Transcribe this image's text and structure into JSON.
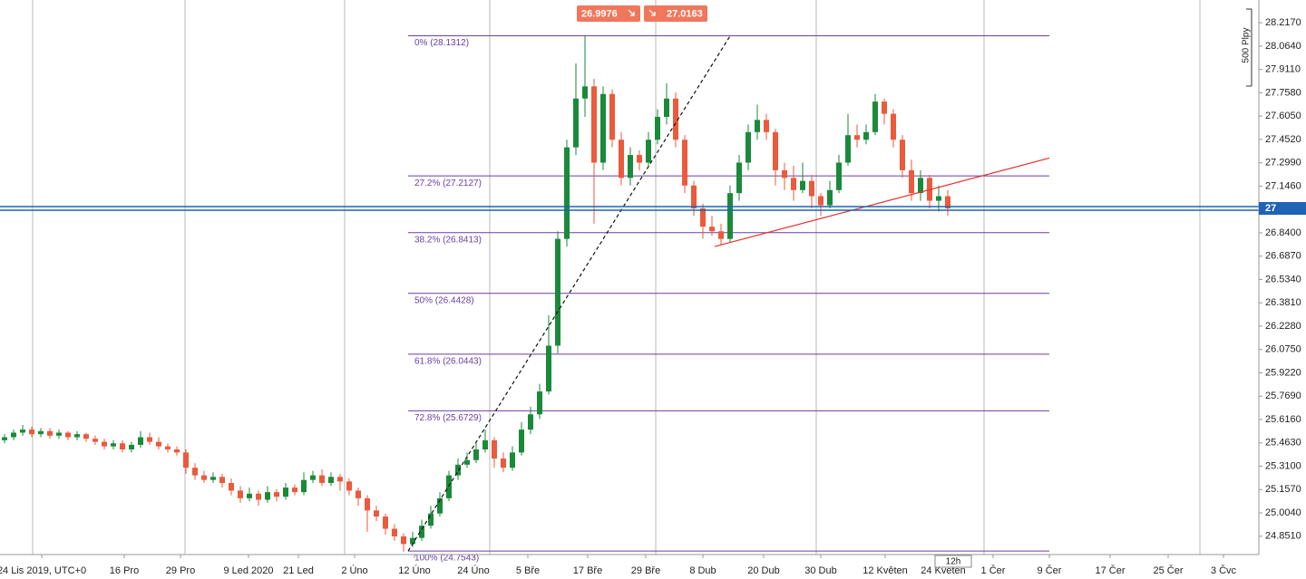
{
  "chart_data": {
    "type": "candlestick",
    "ylim": [
      24.731,
      28.366
    ],
    "yticks": [
      {
        "value": 28.217,
        "label": "28.2170"
      },
      {
        "value": 28.064,
        "label": "28.0640"
      },
      {
        "value": 27.911,
        "label": "27.9110"
      },
      {
        "value": 27.758,
        "label": "27.7580"
      },
      {
        "value": 27.605,
        "label": "27.6050"
      },
      {
        "value": 27.452,
        "label": "27.4520"
      },
      {
        "value": 27.299,
        "label": "27.2990"
      },
      {
        "value": 27.146,
        "label": "27.1460"
      },
      {
        "value": 26.84,
        "label": "26.8400"
      },
      {
        "value": 26.687,
        "label": "26.6870"
      },
      {
        "value": 26.534,
        "label": "26.5340"
      },
      {
        "value": 26.381,
        "label": "26.3810"
      },
      {
        "value": 26.228,
        "label": "26.2280"
      },
      {
        "value": 26.075,
        "label": "26.0750"
      },
      {
        "value": 25.922,
        "label": "25.9220"
      },
      {
        "value": 25.769,
        "label": "25.7690"
      },
      {
        "value": 25.616,
        "label": "25.6160"
      },
      {
        "value": 25.463,
        "label": "25.4630"
      },
      {
        "value": 25.31,
        "label": "25.3100"
      },
      {
        "value": 25.157,
        "label": "25.1570"
      },
      {
        "value": 25.004,
        "label": "25.0040"
      },
      {
        "value": 24.851,
        "label": "24.8510"
      }
    ],
    "xlim": [
      0,
      138.8
    ],
    "xticks": [
      {
        "value": 4.6,
        "label": "24 Lis 2019, UTC+0"
      },
      {
        "value": 13.7,
        "label": "16 Pro"
      },
      {
        "value": 19.9,
        "label": "29 Pro"
      },
      {
        "value": 27.4,
        "label": "9 Led 2020"
      },
      {
        "value": 32.9,
        "label": "21 Led"
      },
      {
        "value": 39.1,
        "label": "2 Úno"
      },
      {
        "value": 45.7,
        "label": "12 Úno"
      },
      {
        "value": 52.2,
        "label": "24 Úno"
      },
      {
        "value": 58.2,
        "label": "5 Bře"
      },
      {
        "value": 64.8,
        "label": "17 Bře"
      },
      {
        "value": 71.2,
        "label": "29 Bře"
      },
      {
        "value": 77.5,
        "label": "8 Dub"
      },
      {
        "value": 84.2,
        "label": "20 Dub"
      },
      {
        "value": 90.5,
        "label": "30 Dub"
      },
      {
        "value": 97.6,
        "label": "12 Květen"
      },
      {
        "value": 104,
        "label": "24 Květen"
      },
      {
        "value": 109.5,
        "label": "1 Čer"
      },
      {
        "value": 115.7,
        "label": "9 Čer"
      },
      {
        "value": 122.4,
        "label": "17 Čer"
      },
      {
        "value": 128.8,
        "label": "25 Čer"
      },
      {
        "value": 134.9,
        "label": "3 Čvc"
      }
    ],
    "xgrid": [
      3.6,
      20.4,
      38.0,
      54.0,
      72.3,
      90.0,
      108.5,
      132.3
    ],
    "series": [
      {
        "up_color": "#1a8a3a",
        "down_color": "#ea5a3c",
        "ohlc": [
          [
            25.48,
            25.52,
            25.46,
            25.5
          ],
          [
            25.5,
            25.55,
            25.48,
            25.53
          ],
          [
            25.53,
            25.58,
            25.51,
            25.55
          ],
          [
            25.55,
            25.57,
            25.5,
            25.52
          ],
          [
            25.52,
            25.56,
            25.5,
            25.54
          ],
          [
            25.54,
            25.56,
            25.49,
            25.51
          ],
          [
            25.51,
            25.55,
            25.49,
            25.53
          ],
          [
            25.53,
            25.54,
            25.48,
            25.5
          ],
          [
            25.5,
            25.54,
            25.48,
            25.52
          ],
          [
            25.52,
            25.53,
            25.47,
            25.49
          ],
          [
            25.49,
            25.51,
            25.45,
            25.47
          ],
          [
            25.47,
            25.49,
            25.42,
            25.44
          ],
          [
            25.44,
            25.48,
            25.42,
            25.46
          ],
          [
            25.46,
            25.48,
            25.4,
            25.42
          ],
          [
            25.42,
            25.47,
            25.4,
            25.45
          ],
          [
            25.45,
            25.54,
            25.43,
            25.5
          ],
          [
            25.5,
            25.53,
            25.45,
            25.47
          ],
          [
            25.47,
            25.5,
            25.42,
            25.44
          ],
          [
            25.44,
            25.46,
            25.4,
            25.42
          ],
          [
            25.42,
            25.44,
            25.38,
            25.4
          ],
          [
            25.4,
            25.42,
            25.26,
            25.3
          ],
          [
            25.3,
            25.33,
            25.22,
            25.25
          ],
          [
            25.25,
            25.28,
            25.2,
            25.22
          ],
          [
            25.22,
            25.27,
            25.2,
            25.24
          ],
          [
            25.24,
            25.26,
            25.17,
            25.2
          ],
          [
            25.2,
            25.23,
            25.12,
            25.15
          ],
          [
            25.15,
            25.18,
            25.07,
            25.1
          ],
          [
            25.1,
            25.17,
            25.08,
            25.13
          ],
          [
            25.13,
            25.15,
            25.05,
            25.09
          ],
          [
            25.09,
            25.18,
            25.07,
            25.14
          ],
          [
            25.14,
            25.16,
            25.08,
            25.11
          ],
          [
            25.11,
            25.2,
            25.09,
            25.17
          ],
          [
            25.17,
            25.19,
            25.12,
            25.14
          ],
          [
            25.14,
            25.27,
            25.12,
            25.22
          ],
          [
            25.22,
            25.28,
            25.2,
            25.25
          ],
          [
            25.25,
            25.29,
            25.18,
            25.2
          ],
          [
            25.2,
            25.27,
            25.18,
            25.24
          ],
          [
            25.24,
            25.26,
            25.15,
            25.21
          ],
          [
            25.21,
            25.23,
            25.12,
            25.15
          ],
          [
            25.15,
            25.17,
            25.05,
            25.1
          ],
          [
            25.1,
            25.12,
            24.88,
            25.02
          ],
          [
            25.02,
            25.05,
            24.95,
            24.98
          ],
          [
            24.98,
            25.0,
            24.86,
            24.9
          ],
          [
            24.9,
            24.93,
            24.82,
            24.85
          ],
          [
            24.85,
            24.87,
            24.75,
            24.8
          ],
          [
            24.8,
            24.88,
            24.78,
            24.84
          ],
          [
            24.84,
            24.96,
            24.82,
            24.92
          ],
          [
            24.92,
            25.05,
            24.9,
            25.0
          ],
          [
            25.0,
            25.14,
            24.98,
            25.1
          ],
          [
            25.1,
            25.28,
            25.08,
            25.25
          ],
          [
            25.25,
            25.36,
            25.22,
            25.32
          ],
          [
            25.32,
            25.4,
            25.3,
            25.35
          ],
          [
            25.35,
            25.46,
            25.33,
            25.42
          ],
          [
            25.42,
            25.55,
            25.4,
            25.48
          ],
          [
            25.48,
            25.5,
            25.3,
            25.36
          ],
          [
            25.36,
            25.4,
            25.27,
            25.3
          ],
          [
            25.3,
            25.44,
            25.28,
            25.4
          ],
          [
            25.4,
            25.6,
            25.38,
            25.55
          ],
          [
            25.55,
            25.7,
            25.52,
            25.65
          ],
          [
            25.65,
            25.85,
            25.62,
            25.8
          ],
          [
            25.8,
            26.3,
            25.78,
            26.1
          ],
          [
            26.1,
            26.85,
            26.05,
            26.8
          ],
          [
            26.8,
            27.45,
            26.75,
            27.4
          ],
          [
            27.4,
            27.95,
            27.35,
            27.72
          ],
          [
            27.72,
            28.13,
            27.6,
            27.8
          ],
          [
            27.8,
            27.85,
            26.9,
            27.3
          ],
          [
            27.3,
            27.8,
            27.25,
            27.75
          ],
          [
            27.75,
            27.78,
            27.4,
            27.45
          ],
          [
            27.45,
            27.5,
            27.15,
            27.2
          ],
          [
            27.2,
            27.4,
            27.15,
            27.35
          ],
          [
            27.35,
            27.38,
            27.25,
            27.3
          ],
          [
            27.3,
            27.5,
            27.27,
            27.45
          ],
          [
            27.45,
            27.65,
            27.42,
            27.6
          ],
          [
            27.6,
            27.82,
            27.55,
            27.72
          ],
          [
            27.72,
            27.76,
            27.4,
            27.45
          ],
          [
            27.45,
            27.48,
            27.1,
            27.15
          ],
          [
            27.15,
            27.18,
            26.95,
            27.0
          ],
          [
            27.0,
            27.03,
            26.8,
            26.88
          ],
          [
            26.88,
            26.95,
            26.82,
            26.85
          ],
          [
            26.85,
            26.9,
            26.76,
            26.8
          ],
          [
            26.8,
            27.15,
            26.78,
            27.1
          ],
          [
            27.1,
            27.35,
            27.05,
            27.3
          ],
          [
            27.3,
            27.55,
            27.25,
            27.5
          ],
          [
            27.5,
            27.68,
            27.45,
            27.58
          ],
          [
            27.58,
            27.62,
            27.45,
            27.5
          ],
          [
            27.5,
            27.52,
            27.15,
            27.25
          ],
          [
            27.25,
            27.3,
            27.12,
            27.2
          ],
          [
            27.2,
            27.28,
            27.05,
            27.12
          ],
          [
            27.12,
            27.3,
            27.1,
            27.18
          ],
          [
            27.18,
            27.22,
            27.0,
            27.08
          ],
          [
            27.08,
            27.1,
            26.95,
            27.02
          ],
          [
            27.02,
            27.18,
            27.0,
            27.12
          ],
          [
            27.12,
            27.35,
            27.1,
            27.3
          ],
          [
            27.3,
            27.62,
            27.28,
            27.48
          ],
          [
            27.48,
            27.55,
            27.4,
            27.45
          ],
          [
            27.45,
            27.55,
            27.42,
            27.5
          ],
          [
            27.5,
            27.75,
            27.48,
            27.7
          ],
          [
            27.7,
            27.72,
            27.55,
            27.62
          ],
          [
            27.62,
            27.65,
            27.4,
            27.45
          ],
          [
            27.45,
            27.48,
            27.2,
            27.25
          ],
          [
            27.25,
            27.32,
            27.05,
            27.1
          ],
          [
            27.1,
            27.25,
            27.05,
            27.2
          ],
          [
            27.2,
            27.22,
            27.0,
            27.05
          ],
          [
            27.05,
            27.15,
            26.98,
            27.08
          ],
          [
            27.08,
            27.12,
            26.95,
            27.0
          ]
        ]
      }
    ],
    "fib": {
      "color": "#6b3fa0",
      "x_range": [
        45,
        115.7
      ],
      "levels": [
        {
          "value": 28.1312,
          "label": "0% (28.1312)"
        },
        {
          "value": 27.2127,
          "label": "27.2% (27.2127)"
        },
        {
          "value": 26.8413,
          "label": "38.2% (26.8413)"
        },
        {
          "value": 26.4428,
          "label": "50% (26.4428)"
        },
        {
          "value": 26.0443,
          "label": "61.8% (26.0443)"
        },
        {
          "value": 25.6729,
          "label": "72.8% (25.6729)"
        },
        {
          "value": 24.7543,
          "label": "100% (24.7543)"
        }
      ]
    },
    "trendlines": [
      {
        "color": "#111111",
        "dashed": true,
        "points": [
          [
            45,
            24.7543
          ],
          [
            80.5,
            28.13
          ]
        ]
      },
      {
        "color": "#e8302a",
        "dashed": false,
        "points": [
          [
            78.8,
            26.75
          ],
          [
            115.7,
            27.33
          ]
        ]
      }
    ],
    "last_price": {
      "value": 27,
      "color": "#1e63b4"
    },
    "quotes": {
      "sell": 26.9976,
      "buy": 27.0163,
      "color": "#f0775c"
    },
    "scale_label": "500 Plpy",
    "timeframe": "12h"
  }
}
